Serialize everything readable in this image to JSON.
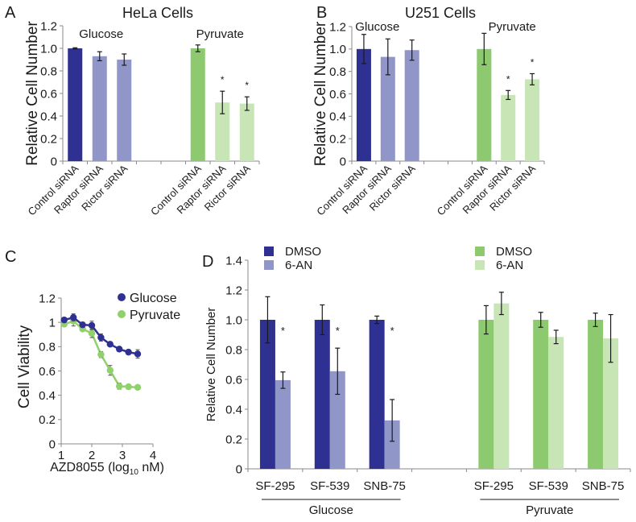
{
  "colors": {
    "glucose_control": "#2e3192",
    "glucose_treated": "#9196c9",
    "pyruvate_control": "#8dc96f",
    "pyruvate_treated": "#c8e5b6",
    "line_glucose": "#2e3192",
    "line_pyruvate": "#8fd16a",
    "axis": "#8a8a8a"
  },
  "chart_data": [
    {
      "panel_label": "A",
      "type": "bar",
      "title": "HeLa Cells",
      "ylabel": "Relative Cell Number",
      "ylim": [
        0,
        1.2
      ],
      "yticks": [
        "0",
        "0.2",
        "0.4",
        "0.6",
        "0.8",
        "1.0",
        "1.2"
      ],
      "significance_marker": "*",
      "groups": [
        {
          "name": "Glucose",
          "categories": [
            "Control siRNA",
            "Raptor siRNA",
            "Rictor siRNA"
          ],
          "values": [
            1.0,
            0.93,
            0.9
          ],
          "errors": [
            0.005,
            0.04,
            0.05
          ],
          "significant": [
            false,
            false,
            false
          ]
        },
        {
          "name": "Pyruvate",
          "categories": [
            "Control siRNA",
            "Raptor siRNA",
            "Rictor siRNA"
          ],
          "values": [
            1.0,
            0.52,
            0.51
          ],
          "errors": [
            0.03,
            0.1,
            0.06
          ],
          "significant": [
            false,
            true,
            true
          ]
        }
      ]
    },
    {
      "panel_label": "B",
      "type": "bar",
      "title": "U251 Cells",
      "ylabel": "Relative Cell Number",
      "ylim": [
        0,
        1.2
      ],
      "yticks": [
        "0",
        "0.2",
        "0.4",
        "0.6",
        "0.8",
        "1.0",
        "1.2"
      ],
      "significance_marker": "*",
      "groups": [
        {
          "name": "Glucose",
          "categories": [
            "Control siRNA",
            "Raptor siRNA",
            "Rictor siRNA"
          ],
          "values": [
            1.0,
            0.93,
            0.99
          ],
          "errors": [
            0.13,
            0.16,
            0.09
          ],
          "significant": [
            false,
            false,
            false
          ]
        },
        {
          "name": "Pyruvate",
          "categories": [
            "Control siRNA",
            "Raptor siRNA",
            "Rictor siRNA"
          ],
          "values": [
            1.0,
            0.59,
            0.73
          ],
          "errors": [
            0.14,
            0.04,
            0.05
          ],
          "significant": [
            false,
            true,
            true
          ]
        }
      ]
    },
    {
      "panel_label": "C",
      "type": "line",
      "ylabel": "Cell Viability",
      "xlabel_prefix": "AZD8055 (log",
      "xlabel_subscript": "10",
      "xlabel_suffix": " nM)",
      "xlim": [
        1,
        4
      ],
      "ylim": [
        0,
        1.2
      ],
      "xticks": [
        "1",
        "2",
        "3",
        "4"
      ],
      "yticks": [
        "0",
        "0.2",
        "0.4",
        "0.6",
        "0.8",
        "1",
        "1.2"
      ],
      "legend": "top-right",
      "x": [
        1.1,
        1.4,
        1.7,
        2.0,
        2.3,
        2.6,
        2.9,
        3.2,
        3.5
      ],
      "series": [
        {
          "name": "Glucose",
          "values": [
            1.02,
            1.04,
            0.98,
            0.975,
            0.875,
            0.82,
            0.78,
            0.755,
            0.74
          ],
          "errors": [
            0.015,
            0.03,
            0.02,
            0.035,
            0.03,
            0.01,
            0.015,
            0.015,
            0.035
          ]
        },
        {
          "name": "Pyruvate",
          "values": [
            0.985,
            1.01,
            0.945,
            0.91,
            0.735,
            0.605,
            0.475,
            0.47,
            0.465
          ],
          "errors": [
            0.01,
            0.04,
            0.015,
            0.035,
            0.025,
            0.04,
            0.025,
            0.01,
            0.01
          ]
        }
      ]
    },
    {
      "panel_label": "D",
      "type": "bar",
      "ylabel": "Relative Cell Number",
      "ylim": [
        0,
        1.4
      ],
      "yticks": [
        "0",
        "0.2",
        "0.4",
        "0.6",
        "0.8",
        "1.0",
        "1.2",
        "1.4"
      ],
      "significance_marker": "*",
      "legend": "top",
      "groups": [
        {
          "name": "Glucose",
          "categories": [
            "SF-295",
            "SF-539",
            "SNB-75"
          ],
          "series": [
            {
              "name": "DMSO",
              "values": [
                1.0,
                1.0,
                1.0
              ],
              "errors": [
                0.155,
                0.1,
                0.025
              ],
              "significant": [
                false,
                false,
                false
              ]
            },
            {
              "name": "6-AN",
              "values": [
                0.595,
                0.655,
                0.325
              ],
              "errors": [
                0.055,
                0.155,
                0.14
              ],
              "significant": [
                true,
                true,
                true
              ]
            }
          ]
        },
        {
          "name": "Pyruvate",
          "categories": [
            "SF-295",
            "SF-539",
            "SNB-75"
          ],
          "series": [
            {
              "name": "DMSO",
              "values": [
                1.0,
                1.0,
                1.0
              ],
              "errors": [
                0.095,
                0.05,
                0.045
              ],
              "significant": [
                false,
                false,
                false
              ]
            },
            {
              "name": "6-AN",
              "values": [
                1.11,
                0.885,
                0.875
              ],
              "errors": [
                0.075,
                0.045,
                0.16
              ],
              "significant": [
                false,
                false,
                false
              ]
            }
          ]
        }
      ]
    }
  ]
}
